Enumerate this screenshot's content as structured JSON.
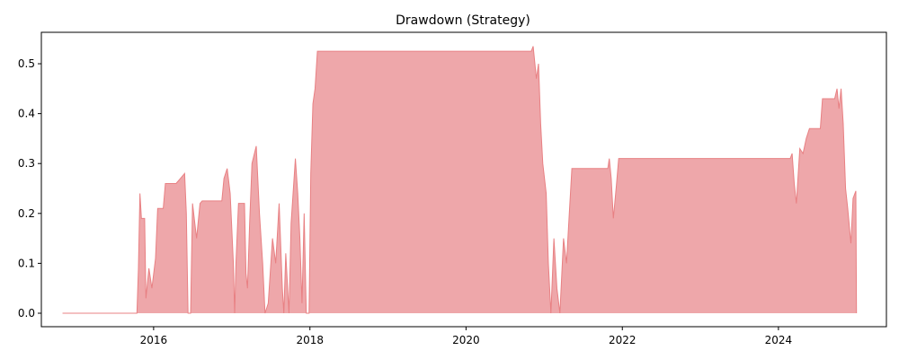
{
  "chart_data": {
    "type": "area",
    "title": "Drawdown (Strategy)",
    "xlabel": "",
    "ylabel": "",
    "x_ticks": [
      "2016",
      "2018",
      "2020",
      "2022",
      "2024"
    ],
    "y_ticks": [
      "0.0",
      "0.1",
      "0.2",
      "0.3",
      "0.4",
      "0.5"
    ],
    "xlim": [
      "2014-07-25",
      "2025-05-20"
    ],
    "ylim": [
      -0.027,
      0.563
    ],
    "grid": false,
    "legend": "none",
    "fill_color": "#eea7aa",
    "line_color": "#e88083",
    "series": [
      {
        "points": [
          [
            "2014-11-01",
            0.0
          ],
          [
            "2015-10-15",
            0.0
          ],
          [
            "2015-10-22",
            0.09
          ],
          [
            "2015-10-29",
            0.24
          ],
          [
            "2015-11-05",
            0.19
          ],
          [
            "2015-11-20",
            0.19
          ],
          [
            "2015-11-26",
            0.03
          ],
          [
            "2015-12-10",
            0.09
          ],
          [
            "2015-12-24",
            0.05
          ],
          [
            "2016-01-10",
            0.11
          ],
          [
            "2016-01-20",
            0.21
          ],
          [
            "2016-02-15",
            0.21
          ],
          [
            "2016-02-25",
            0.26
          ],
          [
            "2016-04-15",
            0.26
          ],
          [
            "2016-05-05",
            0.27
          ],
          [
            "2016-05-25",
            0.28
          ],
          [
            "2016-06-02",
            0.2
          ],
          [
            "2016-06-10",
            0.0
          ],
          [
            "2016-06-22",
            0.0
          ],
          [
            "2016-07-01",
            0.22
          ],
          [
            "2016-07-20",
            0.15
          ],
          [
            "2016-08-05",
            0.22
          ],
          [
            "2016-08-15",
            0.225
          ],
          [
            "2016-11-15",
            0.225
          ],
          [
            "2016-11-25",
            0.27
          ],
          [
            "2016-12-10",
            0.29
          ],
          [
            "2016-12-24",
            0.24
          ],
          [
            "2017-01-08",
            0.1
          ],
          [
            "2017-01-14",
            0.0
          ],
          [
            "2017-01-20",
            0.1
          ],
          [
            "2017-02-01",
            0.22
          ],
          [
            "2017-03-01",
            0.22
          ],
          [
            "2017-03-08",
            0.08
          ],
          [
            "2017-03-15",
            0.05
          ],
          [
            "2017-03-25",
            0.18
          ],
          [
            "2017-04-05",
            0.3
          ],
          [
            "2017-04-25",
            0.335
          ],
          [
            "2017-05-10",
            0.2
          ],
          [
            "2017-05-25",
            0.1
          ],
          [
            "2017-06-05",
            0.0
          ],
          [
            "2017-06-20",
            0.02
          ],
          [
            "2017-07-10",
            0.15
          ],
          [
            "2017-07-25",
            0.1
          ],
          [
            "2017-08-10",
            0.22
          ],
          [
            "2017-08-25",
            0.05
          ],
          [
            "2017-09-01",
            0.0
          ],
          [
            "2017-09-10",
            0.12
          ],
          [
            "2017-09-25",
            0.0
          ],
          [
            "2017-10-05",
            0.18
          ],
          [
            "2017-10-25",
            0.31
          ],
          [
            "2017-11-05",
            0.24
          ],
          [
            "2017-11-15",
            0.15
          ],
          [
            "2017-11-25",
            0.02
          ],
          [
            "2017-12-05",
            0.2
          ],
          [
            "2017-12-15",
            0.0
          ],
          [
            "2017-12-28",
            0.0
          ],
          [
            "2018-01-05",
            0.28
          ],
          [
            "2018-01-15",
            0.42
          ],
          [
            "2018-01-25",
            0.45
          ],
          [
            "2018-02-05",
            0.525
          ],
          [
            "2020-11-01",
            0.525
          ],
          [
            "2020-11-10",
            0.535
          ],
          [
            "2020-11-25",
            0.47
          ],
          [
            "2020-12-05",
            0.5
          ],
          [
            "2020-12-15",
            0.38
          ],
          [
            "2020-12-25",
            0.3
          ],
          [
            "2021-01-10",
            0.24
          ],
          [
            "2021-01-20",
            0.1
          ],
          [
            "2021-02-01",
            0.0
          ],
          [
            "2021-02-15",
            0.15
          ],
          [
            "2021-03-01",
            0.05
          ],
          [
            "2021-03-15",
            0.0
          ],
          [
            "2021-04-01",
            0.15
          ],
          [
            "2021-04-15",
            0.1
          ],
          [
            "2021-04-28",
            0.2
          ],
          [
            "2021-05-10",
            0.29
          ],
          [
            "2021-10-25",
            0.29
          ],
          [
            "2021-11-01",
            0.31
          ],
          [
            "2021-11-10",
            0.27
          ],
          [
            "2021-11-20",
            0.19
          ],
          [
            "2021-12-05",
            0.26
          ],
          [
            "2021-12-15",
            0.31
          ],
          [
            "2024-02-25",
            0.31
          ],
          [
            "2024-03-05",
            0.32
          ],
          [
            "2024-03-15",
            0.26
          ],
          [
            "2024-03-25",
            0.22
          ],
          [
            "2024-04-10",
            0.33
          ],
          [
            "2024-04-25",
            0.32
          ],
          [
            "2024-05-10",
            0.35
          ],
          [
            "2024-05-25",
            0.37
          ],
          [
            "2024-07-15",
            0.37
          ],
          [
            "2024-07-25",
            0.43
          ],
          [
            "2024-09-20",
            0.43
          ],
          [
            "2024-10-01",
            0.45
          ],
          [
            "2024-10-10",
            0.41
          ],
          [
            "2024-10-20",
            0.45
          ],
          [
            "2024-10-30",
            0.38
          ],
          [
            "2024-11-10",
            0.25
          ],
          [
            "2024-11-20",
            0.21
          ],
          [
            "2024-12-05",
            0.14
          ],
          [
            "2024-12-15",
            0.23
          ],
          [
            "2024-12-28",
            0.245
          ],
          [
            "2024-12-31",
            0.0
          ]
        ]
      }
    ]
  }
}
